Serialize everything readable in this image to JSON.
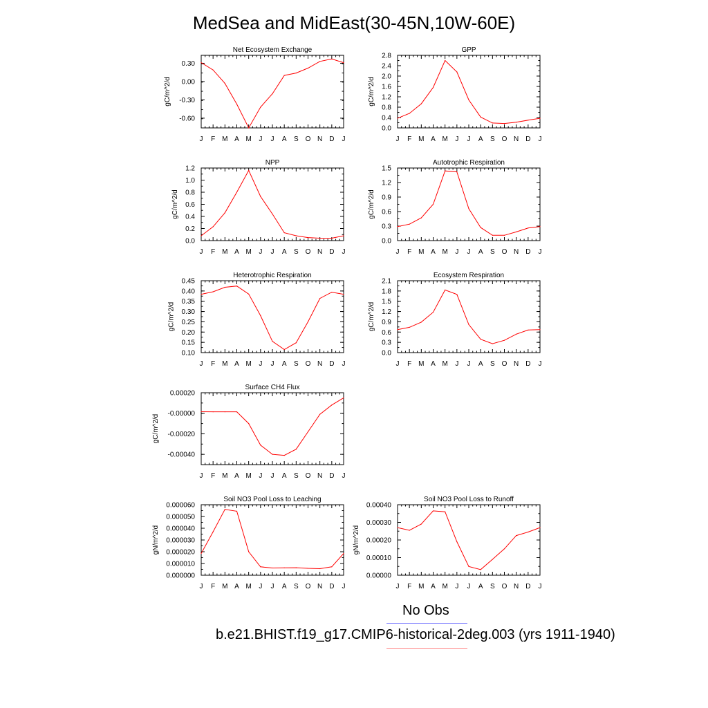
{
  "title": "MedSea and MidEast(30-45N,10W-60E)",
  "legend": {
    "obs_label": "No Obs",
    "model_label": "b.e21.BHIST.f19_g17.CMIP6-historical-2deg.003 (yrs 1911-1940)",
    "obs_color": "#7f7fff",
    "model_color": "#ff7f7f"
  },
  "series_color": "#ff0000",
  "chart_data": [
    {
      "type": "line",
      "title": "Net Ecosystem Exchange",
      "ylabel": "gC/m^2/d",
      "categories": [
        "J",
        "F",
        "M",
        "A",
        "M",
        "J",
        "J",
        "A",
        "S",
        "O",
        "N",
        "D",
        "J"
      ],
      "values": [
        0.31,
        0.19,
        -0.03,
        -0.37,
        -0.76,
        -0.42,
        -0.2,
        0.1,
        0.14,
        0.22,
        0.33,
        0.37,
        0.31
      ],
      "ylim": [
        -0.76,
        0.43
      ],
      "yticks": [
        0.3,
        0.0,
        -0.3,
        -0.6
      ],
      "yticklabels": [
        "0.30",
        "0.00",
        "-0.30",
        "-0.60"
      ]
    },
    {
      "type": "line",
      "title": "GPP",
      "ylabel": "gC/m^2/d",
      "categories": [
        "J",
        "F",
        "M",
        "A",
        "M",
        "J",
        "J",
        "A",
        "S",
        "O",
        "N",
        "D",
        "J"
      ],
      "values": [
        0.37,
        0.56,
        0.93,
        1.56,
        2.6,
        2.16,
        1.08,
        0.42,
        0.19,
        0.17,
        0.22,
        0.3,
        0.37
      ],
      "ylim": [
        0.0,
        2.8
      ],
      "yticks": [
        0.0,
        0.4,
        0.8,
        1.2,
        1.6,
        2.0,
        2.4,
        2.8
      ],
      "yticklabels": [
        "0.0",
        "0.4",
        "0.8",
        "1.2",
        "1.6",
        "2.0",
        "2.4",
        "2.8"
      ]
    },
    {
      "type": "line",
      "title": "NPP",
      "ylabel": "gC/m^2/d",
      "categories": [
        "J",
        "F",
        "M",
        "A",
        "M",
        "J",
        "J",
        "A",
        "S",
        "O",
        "N",
        "D",
        "J"
      ],
      "values": [
        0.08,
        0.23,
        0.46,
        0.8,
        1.16,
        0.73,
        0.44,
        0.13,
        0.08,
        0.05,
        0.04,
        0.04,
        0.08
      ],
      "ylim": [
        0.0,
        1.2
      ],
      "yticks": [
        0.0,
        0.2,
        0.4,
        0.6,
        0.8,
        1.0,
        1.2
      ],
      "yticklabels": [
        "0.0",
        "0.2",
        "0.4",
        "0.6",
        "0.8",
        "1.0",
        "1.2"
      ]
    },
    {
      "type": "line",
      "title": "Autotrophic Respiration",
      "ylabel": "gC/m^2/d",
      "categories": [
        "J",
        "F",
        "M",
        "A",
        "M",
        "J",
        "J",
        "A",
        "S",
        "O",
        "N",
        "D",
        "J"
      ],
      "values": [
        0.29,
        0.34,
        0.47,
        0.75,
        1.44,
        1.42,
        0.66,
        0.27,
        0.11,
        0.11,
        0.18,
        0.26,
        0.29
      ],
      "ylim": [
        0.0,
        1.5
      ],
      "yticks": [
        0.0,
        0.3,
        0.6,
        0.9,
        1.2,
        1.5
      ],
      "yticklabels": [
        "0.0",
        "0.3",
        "0.6",
        "0.9",
        "1.2",
        "1.5"
      ]
    },
    {
      "type": "line",
      "title": "Heterotrophic Respiration",
      "ylabel": "gC/m^2/d",
      "categories": [
        "J",
        "F",
        "M",
        "A",
        "M",
        "J",
        "J",
        "A",
        "S",
        "O",
        "N",
        "D",
        "J"
      ],
      "values": [
        0.384,
        0.396,
        0.418,
        0.424,
        0.385,
        0.28,
        0.155,
        0.115,
        0.148,
        0.25,
        0.364,
        0.394,
        0.384
      ],
      "ylim": [
        0.1,
        0.45
      ],
      "yticks": [
        0.1,
        0.15,
        0.2,
        0.25,
        0.3,
        0.35,
        0.4,
        0.45
      ],
      "yticklabels": [
        "0.10",
        "0.15",
        "0.20",
        "0.25",
        "0.30",
        "0.35",
        "0.40",
        "0.45"
      ]
    },
    {
      "type": "line",
      "title": "Ecosystem Respiration",
      "ylabel": "gC/m^2/d",
      "categories": [
        "J",
        "F",
        "M",
        "A",
        "M",
        "J",
        "J",
        "A",
        "S",
        "O",
        "N",
        "D",
        "J"
      ],
      "values": [
        0.67,
        0.74,
        0.89,
        1.18,
        1.83,
        1.7,
        0.82,
        0.39,
        0.26,
        0.36,
        0.54,
        0.66,
        0.67
      ],
      "ylim": [
        0.0,
        2.1
      ],
      "yticks": [
        0.0,
        0.3,
        0.6,
        0.9,
        1.2,
        1.5,
        1.8,
        2.1
      ],
      "yticklabels": [
        "0.0",
        "0.3",
        "0.6",
        "0.9",
        "1.2",
        "1.5",
        "1.8",
        "2.1"
      ]
    },
    {
      "type": "line",
      "title": "Surface CH4 Flux",
      "ylabel": "gC/m^2/d",
      "categories": [
        "J",
        "F",
        "M",
        "A",
        "M",
        "J",
        "J",
        "A",
        "S",
        "O",
        "N",
        "D",
        "J"
      ],
      "values": [
        1.5e-05,
        1.4e-05,
        1.4e-05,
        1.4e-05,
        -0.0001,
        -0.00031,
        -0.0004,
        -0.00041,
        -0.00035,
        -0.00018,
        -1e-05,
        8e-05,
        0.00015
      ],
      "ylim": [
        -0.0005,
        0.0002
      ],
      "yticks": [
        0.0002,
        0.0,
        -0.0002,
        -0.0004
      ],
      "yticklabels": [
        "0.00020",
        "-0.00000",
        "-0.00020",
        "-0.00040"
      ]
    },
    {
      "type": "line",
      "title": "Soil NO3 Pool Loss to Leaching",
      "ylabel": "gN/m^2/d",
      "categories": [
        "J",
        "F",
        "M",
        "A",
        "M",
        "J",
        "J",
        "A",
        "S",
        "O",
        "N",
        "D",
        "J"
      ],
      "values": [
        1.85e-05,
        3.7e-05,
        5.6e-05,
        5.45e-05,
        2e-05,
        7.2e-06,
        6.2e-06,
        6.3e-06,
        6.4e-06,
        5.9e-06,
        5.6e-06,
        7.2e-06,
        1.85e-05
      ],
      "ylim": [
        0.0,
        6e-05
      ],
      "yticks": [
        0.0,
        1e-05,
        2e-05,
        3e-05,
        4e-05,
        5e-05,
        6e-05
      ],
      "yticklabels": [
        "0.000000",
        "0.000010",
        "0.000020",
        "0.000030",
        "0.000040",
        "0.000050",
        "0.000060"
      ]
    },
    {
      "type": "line",
      "title": "Soil NO3 Pool Loss to Runoff",
      "ylabel": "gN/m^2/d",
      "categories": [
        "J",
        "F",
        "M",
        "A",
        "M",
        "J",
        "J",
        "A",
        "S",
        "O",
        "N",
        "D",
        "J"
      ],
      "values": [
        0.00027,
        0.000255,
        0.00029,
        0.000365,
        0.00036,
        0.00019,
        5e-05,
        3.2e-05,
        9e-05,
        0.00015,
        0.000225,
        0.000245,
        0.00027
      ],
      "ylim": [
        0.0,
        0.0004
      ],
      "yticks": [
        0.0,
        0.0001,
        0.0002,
        0.0003,
        0.0004
      ],
      "yticklabels": [
        "0.00000",
        "0.00010",
        "0.00020",
        "0.00030",
        "0.00040"
      ]
    }
  ]
}
